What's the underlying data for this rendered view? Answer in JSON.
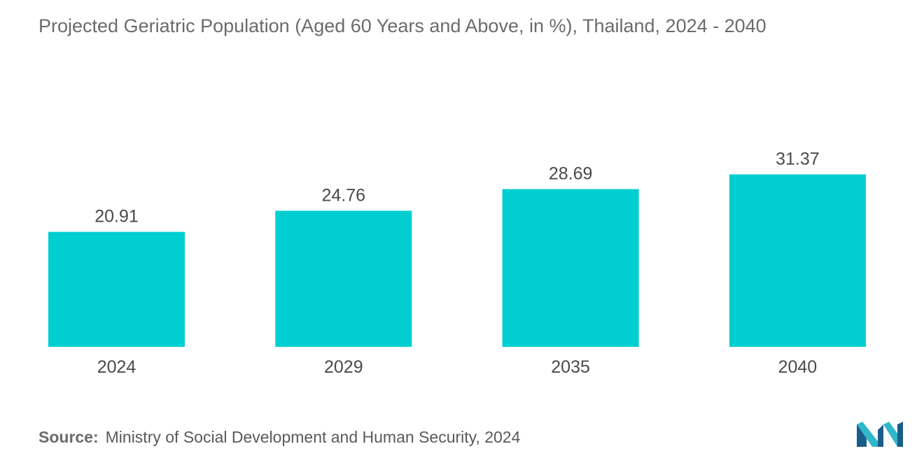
{
  "chart_data": {
    "type": "bar",
    "title": "Projected Geriatric Population (Aged 60 Years and Above, in %), Thailand, 2024 - 2040",
    "categories": [
      "2024",
      "2029",
      "2035",
      "2040"
    ],
    "values": [
      20.91,
      24.76,
      28.69,
      31.37
    ],
    "value_labels": [
      "20.91",
      "24.76",
      "28.69",
      "31.37"
    ],
    "xlabel": "",
    "ylabel": "",
    "ylim": [
      0,
      37
    ],
    "grid": false,
    "legend": "none",
    "bar_color": "#00CED1"
  },
  "source": {
    "label": "Source:",
    "text": "Ministry of Social Development and Human Security, 2024"
  },
  "logo": {
    "icon": "mordor-logo-icon",
    "colors": [
      "#1A5C8A",
      "#2FB8C9"
    ]
  }
}
